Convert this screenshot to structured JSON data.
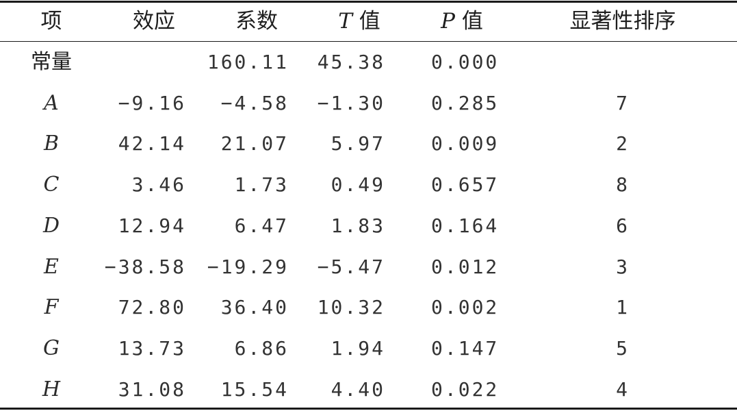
{
  "table": {
    "headers": {
      "item": "项",
      "effect": "效应",
      "coefficient": "系数",
      "t_var": "T",
      "t_suffix": " 值",
      "p_var": "P",
      "p_suffix": " 值",
      "rank": "显著性排序"
    },
    "rows": [
      {
        "item": "常量",
        "effect": "",
        "coefficient": "160.11",
        "t": "45.38",
        "p": "0.000",
        "rank": ""
      },
      {
        "item": "A",
        "effect": "−9.16",
        "coefficient": "−4.58",
        "t": "−1.30",
        "p": "0.285",
        "rank": "7"
      },
      {
        "item": "B",
        "effect": "42.14",
        "coefficient": "21.07",
        "t": "5.97",
        "p": "0.009",
        "rank": "2"
      },
      {
        "item": "C",
        "effect": "3.46",
        "coefficient": "1.73",
        "t": "0.49",
        "p": "0.657",
        "rank": "8"
      },
      {
        "item": "D",
        "effect": "12.94",
        "coefficient": "6.47",
        "t": "1.83",
        "p": "0.164",
        "rank": "6"
      },
      {
        "item": "E",
        "effect": "−38.58",
        "coefficient": "−19.29",
        "t": "−5.47",
        "p": "0.012",
        "rank": "3"
      },
      {
        "item": "F",
        "effect": "72.80",
        "coefficient": "36.40",
        "t": "10.32",
        "p": "0.002",
        "rank": "1"
      },
      {
        "item": "G",
        "effect": "13.73",
        "coefficient": "6.86",
        "t": "1.94",
        "p": "0.147",
        "rank": "5"
      },
      {
        "item": "H",
        "effect": "31.08",
        "coefficient": "15.54",
        "t": "4.40",
        "p": "0.022",
        "rank": "4"
      }
    ]
  }
}
